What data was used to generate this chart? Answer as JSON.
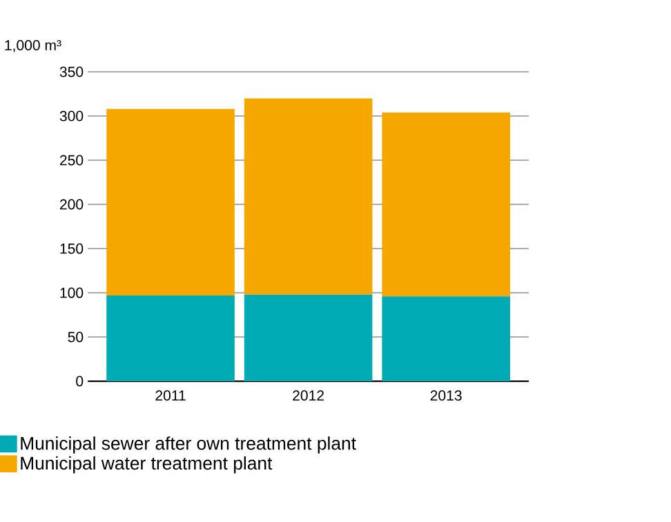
{
  "chart_data": {
    "type": "bar",
    "stacked": true,
    "ylabel": "1,000 m³",
    "categories": [
      "2011",
      "2012",
      "2013"
    ],
    "series": [
      {
        "name": "Municipal sewer after own treatment plant",
        "color": "#00abb5",
        "values": [
          97,
          98,
          96
        ]
      },
      {
        "name": "Municipal water treatment plant",
        "color": "#f5a700",
        "values": [
          211,
          222,
          208
        ]
      }
    ],
    "ylim": [
      0,
      350
    ],
    "yticks": [
      0,
      50,
      100,
      150,
      200,
      250,
      300,
      350
    ],
    "grid": "y",
    "legend": "bottom"
  }
}
